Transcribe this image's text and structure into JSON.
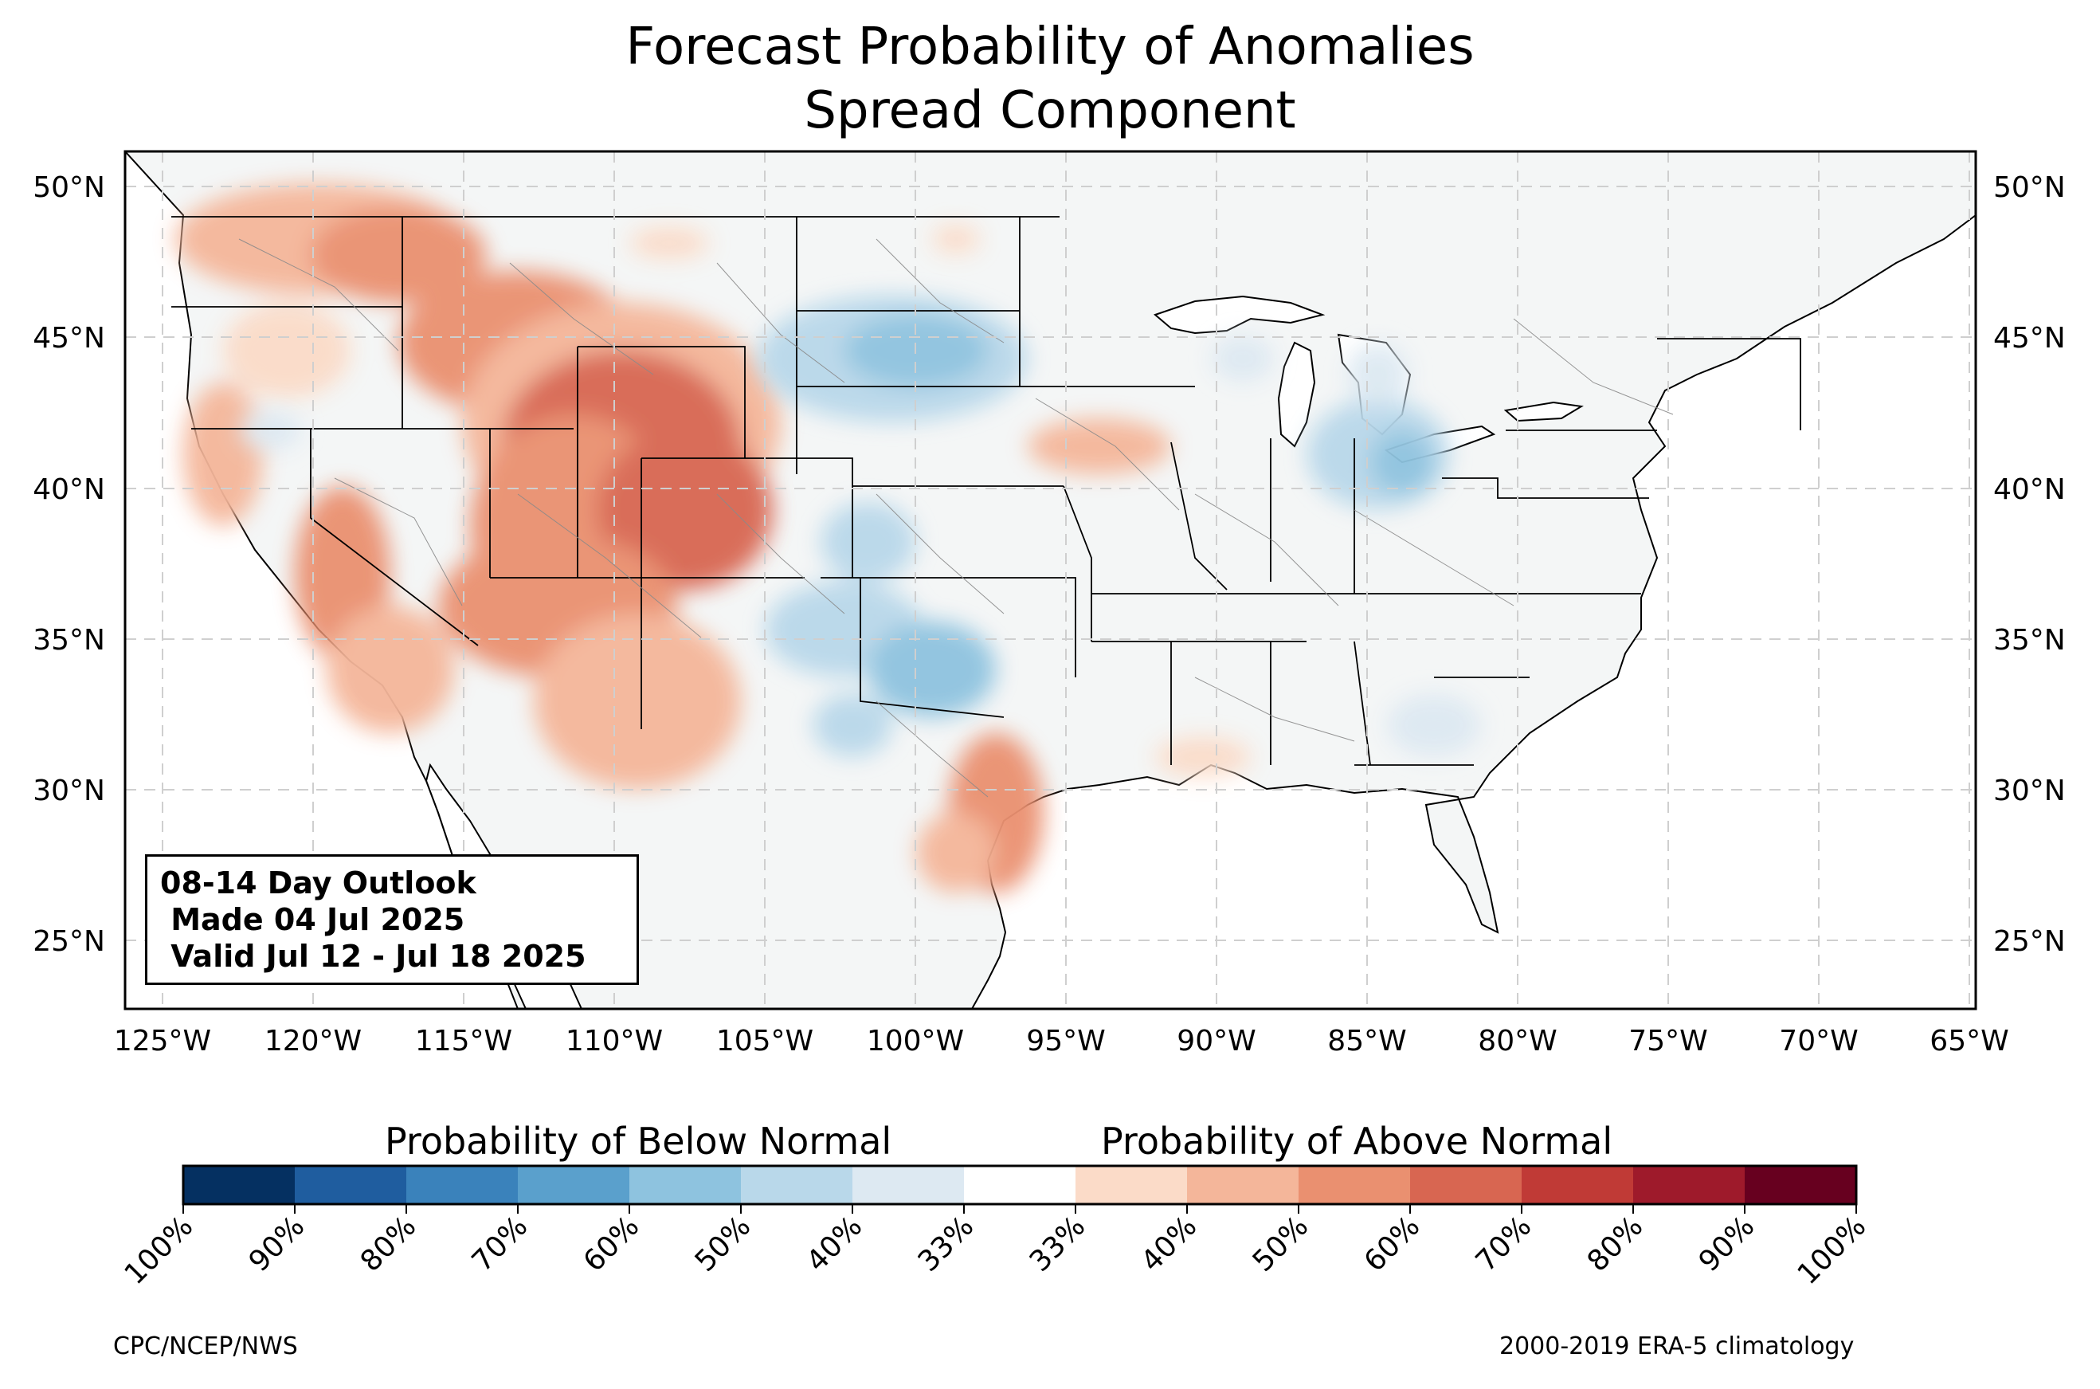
{
  "title": {
    "line1": "Forecast Probability of Anomalies",
    "line2": "Spread Component"
  },
  "map": {
    "lat_labels": [
      "50°N",
      "45°N",
      "40°N",
      "35°N",
      "30°N",
      "25°N"
    ],
    "lon_labels": [
      "125°W",
      "120°W",
      "115°W",
      "110°W",
      "105°W",
      "100°W",
      "95°W",
      "90°W",
      "85°W",
      "80°W",
      "75°W",
      "70°W",
      "65°W"
    ],
    "land_color": "#f4f6f6",
    "gridline_color": "#cfcfcf"
  },
  "infobox": {
    "line1": "08-14 Day Outlook",
    "line2": " Made 04 Jul 2025",
    "line3": " Valid Jul 12 - Jul 18 2025"
  },
  "colorbar": {
    "below_title": "Probability of Below Normal",
    "above_title": "Probability of Above Normal",
    "tick_labels": [
      "100%",
      "90%",
      "80%",
      "70%",
      "60%",
      "50%",
      "40%",
      "33%",
      "33%",
      "40%",
      "50%",
      "60%",
      "70%",
      "80%",
      "90%",
      "100%"
    ],
    "colors": [
      "#053061",
      "#1f5d9f",
      "#3a82bb",
      "#5aa0cc",
      "#8ec3df",
      "#b9d8ea",
      "#dde9f2",
      "#ffffff",
      "#fbdbc8",
      "#f4b69a",
      "#ea9070",
      "#d86651",
      "#c03a36",
      "#9e1a2b",
      "#67001f"
    ]
  },
  "footer": {
    "left": "CPC/NCEP/NWS",
    "right": "2000-2019 ERA-5 climatology"
  }
}
